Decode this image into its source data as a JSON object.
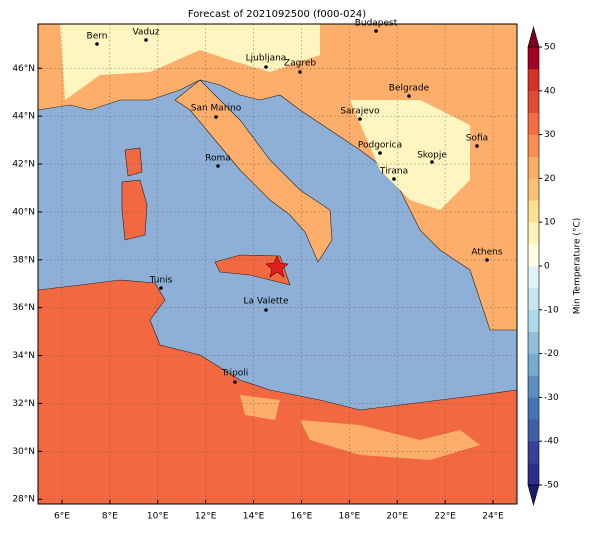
{
  "map": {
    "title": "Forecast of 2021092500 (f000-024)",
    "xlim": [
      5,
      25
    ],
    "ylim": [
      27.8,
      47.85
    ],
    "xticks": [
      {
        "value": 6,
        "label": "6°E"
      },
      {
        "value": 8,
        "label": "8°E"
      },
      {
        "value": 10,
        "label": "10°E"
      },
      {
        "value": 12,
        "label": "12°E"
      },
      {
        "value": 14,
        "label": "14°E"
      },
      {
        "value": 16,
        "label": "16°E"
      },
      {
        "value": 18,
        "label": "18°E"
      },
      {
        "value": 20,
        "label": "20°E"
      },
      {
        "value": 22,
        "label": "22°E"
      },
      {
        "value": 24,
        "label": "24°E"
      }
    ],
    "yticks": [
      {
        "value": 28,
        "label": "28°N"
      },
      {
        "value": 30,
        "label": "30°N"
      },
      {
        "value": 32,
        "label": "32°N"
      },
      {
        "value": 34,
        "label": "34°N"
      },
      {
        "value": 36,
        "label": "36°N"
      },
      {
        "value": 38,
        "label": "38°N"
      },
      {
        "value": 40,
        "label": "40°N"
      },
      {
        "value": 42,
        "label": "42°N"
      },
      {
        "value": 44,
        "label": "44°N"
      },
      {
        "value": 46,
        "label": "46°N"
      }
    ],
    "grid": true,
    "cities": [
      "Bern",
      "Vaduz",
      "Budapest",
      "Ljubljana",
      "Zagreb",
      "Belgrade",
      "San Marino",
      "Sarajevo",
      "Sofia",
      "Podgorica",
      "Skopje",
      "Roma",
      "Tirana",
      "Athens",
      "Tunis",
      "La Valette",
      "Tripoli"
    ]
  },
  "colorbar": {
    "label": "Min Temperature (°C)",
    "lim": [
      -50,
      50
    ],
    "ticks": [
      -50,
      -40,
      -30,
      -20,
      -10,
      0,
      10,
      20,
      30,
      40,
      50
    ],
    "colors": [
      "#2c2f8e",
      "#3a3f9a",
      "#3f5da8",
      "#4575b4",
      "#5b8ec2",
      "#74add1",
      "#91bfdb",
      "#abd9e9",
      "#c6e6ef",
      "#e0f3f8",
      "#fefee0",
      "#fff2bb",
      "#fee090",
      "#fdc175",
      "#fdae61",
      "#f98e52",
      "#f46d43",
      "#e34a33",
      "#d73027",
      "#a50026"
    ],
    "extend_colors": [
      "#1a1a6e",
      "#7a0020"
    ]
  }
}
